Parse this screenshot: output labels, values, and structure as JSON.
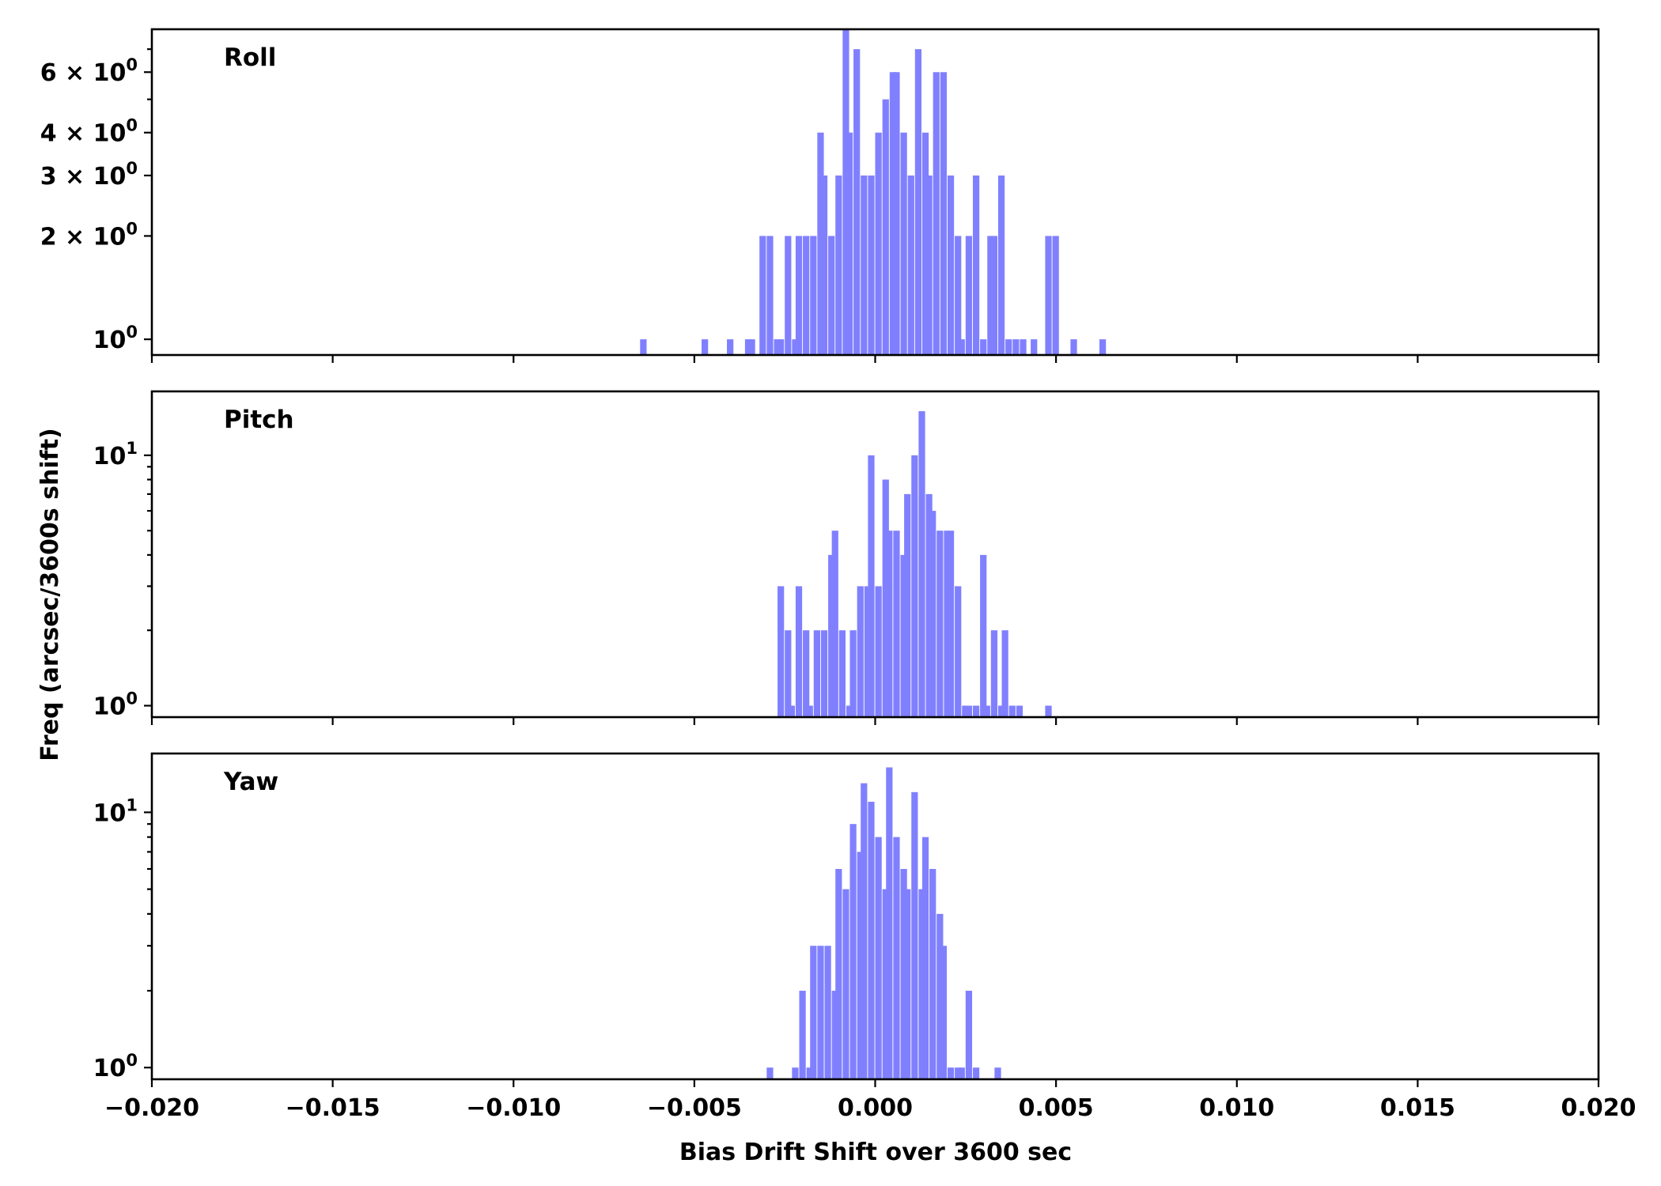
{
  "chart_data": {
    "type": "bar",
    "xlabel": "Bias Drift Shift over 3600 sec",
    "ylabel": "Freq (arcsec/3600s shift)",
    "xlim": [
      -0.02,
      0.02
    ],
    "x_ticks": [
      "−0.020",
      "−0.015",
      "−0.010",
      "−0.005",
      "0.000",
      "0.005",
      "0.010",
      "0.015",
      "0.020"
    ],
    "x_tick_values": [
      -0.02,
      -0.015,
      -0.01,
      -0.005,
      0,
      0.005,
      0.01,
      0.015,
      0.02
    ],
    "y_scale": "log",
    "bin_width": 0.00018,
    "color": "#8080ff",
    "panels": [
      {
        "label": "Roll",
        "ylim": [
          0.9,
          8.0
        ],
        "y_ticks": [
          {
            "value": 1,
            "mant": "",
            "exp": "0"
          },
          {
            "value": 2,
            "mant": "2 × ",
            "exp": "0"
          },
          {
            "value": 3,
            "mant": "3 × ",
            "exp": "0"
          },
          {
            "value": 4,
            "mant": "4 × ",
            "exp": "0"
          },
          {
            "value": 6,
            "mant": "6 × ",
            "exp": "0"
          }
        ],
        "minor_ticks": [
          5,
          7
        ],
        "bins": [
          [
            -0.0065,
            1
          ],
          [
            -0.0048,
            1
          ],
          [
            -0.0041,
            1
          ],
          [
            -0.0036,
            1
          ],
          [
            -0.0035,
            1
          ],
          [
            -0.0032,
            2
          ],
          [
            -0.003,
            2
          ],
          [
            -0.0028,
            1
          ],
          [
            -0.0027,
            1
          ],
          [
            -0.0025,
            2
          ],
          [
            -0.0023,
            1
          ],
          [
            -0.0022,
            2
          ],
          [
            -0.002,
            2
          ],
          [
            -0.0018,
            2
          ],
          [
            -0.0016,
            4
          ],
          [
            -0.0015,
            3
          ],
          [
            -0.0013,
            2
          ],
          [
            -0.0011,
            3
          ],
          [
            -0.0009,
            8
          ],
          [
            -0.0008,
            4
          ],
          [
            -0.0006,
            7
          ],
          [
            -0.0004,
            3
          ],
          [
            -0.0002,
            3
          ],
          [
            0.0,
            4
          ],
          [
            0.0002,
            5
          ],
          [
            0.0004,
            6
          ],
          [
            0.0005,
            6
          ],
          [
            0.0007,
            4
          ],
          [
            0.0009,
            3
          ],
          [
            0.0011,
            7
          ],
          [
            0.0013,
            4
          ],
          [
            0.0014,
            3
          ],
          [
            0.0016,
            6
          ],
          [
            0.0018,
            6
          ],
          [
            0.002,
            3
          ],
          [
            0.0022,
            2
          ],
          [
            0.0023,
            1
          ],
          [
            0.0025,
            2
          ],
          [
            0.0027,
            3
          ],
          [
            0.0029,
            1
          ],
          [
            0.0031,
            2
          ],
          [
            0.0032,
            2
          ],
          [
            0.0034,
            3
          ],
          [
            0.0036,
            1
          ],
          [
            0.0038,
            1
          ],
          [
            0.004,
            1
          ],
          [
            0.0043,
            1
          ],
          [
            0.0047,
            2
          ],
          [
            0.0049,
            2
          ],
          [
            0.0054,
            1
          ],
          [
            0.0062,
            1
          ]
        ]
      },
      {
        "label": "Pitch",
        "ylim": [
          0.9,
          18.0
        ],
        "y_ticks": [
          {
            "value": 1,
            "mant": "",
            "exp": "0"
          },
          {
            "value": 10,
            "mant": "",
            "exp": "1"
          }
        ],
        "minor_ticks": [
          2,
          3,
          4,
          5,
          6,
          7,
          8,
          9
        ],
        "bins": [
          [
            -0.0027,
            3
          ],
          [
            -0.0025,
            2
          ],
          [
            -0.0024,
            1
          ],
          [
            -0.0022,
            3
          ],
          [
            -0.002,
            2
          ],
          [
            -0.0019,
            1
          ],
          [
            -0.0017,
            2
          ],
          [
            -0.0015,
            2
          ],
          [
            -0.0013,
            4
          ],
          [
            -0.0012,
            5
          ],
          [
            -0.001,
            2
          ],
          [
            -0.0008,
            1
          ],
          [
            -0.0007,
            2
          ],
          [
            -0.0005,
            3
          ],
          [
            -0.0003,
            3
          ],
          [
            -0.0002,
            10
          ],
          [
            0.0,
            3
          ],
          [
            0.0002,
            8
          ],
          [
            0.0003,
            5
          ],
          [
            0.0005,
            5
          ],
          [
            0.0007,
            4
          ],
          [
            0.0008,
            7
          ],
          [
            0.001,
            10
          ],
          [
            0.0012,
            15
          ],
          [
            0.0014,
            7
          ],
          [
            0.0015,
            6
          ],
          [
            0.0017,
            5
          ],
          [
            0.0019,
            5
          ],
          [
            0.002,
            5
          ],
          [
            0.0022,
            3
          ],
          [
            0.0024,
            1
          ],
          [
            0.0025,
            1
          ],
          [
            0.0027,
            1
          ],
          [
            0.0029,
            4
          ],
          [
            0.003,
            1
          ],
          [
            0.0032,
            2
          ],
          [
            0.0034,
            1
          ],
          [
            0.0035,
            2
          ],
          [
            0.0037,
            1
          ],
          [
            0.0039,
            1
          ],
          [
            0.0047,
            1
          ]
        ]
      },
      {
        "label": "Yaw",
        "ylim": [
          0.9,
          17.0
        ],
        "y_ticks": [
          {
            "value": 1,
            "mant": "",
            "exp": "0"
          },
          {
            "value": 10,
            "mant": "",
            "exp": "1"
          }
        ],
        "minor_ticks": [
          2,
          3,
          4,
          5,
          6,
          7,
          8,
          9
        ],
        "bins": [
          [
            -0.003,
            1
          ],
          [
            -0.0023,
            1
          ],
          [
            -0.0021,
            2
          ],
          [
            -0.0019,
            1
          ],
          [
            -0.0018,
            3
          ],
          [
            -0.0016,
            3
          ],
          [
            -0.0014,
            3
          ],
          [
            -0.0012,
            2
          ],
          [
            -0.0011,
            6
          ],
          [
            -0.0009,
            5
          ],
          [
            -0.0007,
            9
          ],
          [
            -0.0005,
            7
          ],
          [
            -0.0004,
            13
          ],
          [
            -0.0002,
            11
          ],
          [
            0.0,
            8
          ],
          [
            0.0002,
            5
          ],
          [
            0.0003,
            15
          ],
          [
            0.0005,
            8
          ],
          [
            0.0007,
            6
          ],
          [
            0.0008,
            5
          ],
          [
            0.001,
            12
          ],
          [
            0.0012,
            5
          ],
          [
            0.0013,
            8
          ],
          [
            0.0015,
            6
          ],
          [
            0.0017,
            4
          ],
          [
            0.0018,
            3
          ],
          [
            0.002,
            1
          ],
          [
            0.0022,
            1
          ],
          [
            0.0023,
            1
          ],
          [
            0.0025,
            2
          ],
          [
            0.0027,
            1
          ],
          [
            0.0033,
            1
          ]
        ]
      }
    ]
  }
}
